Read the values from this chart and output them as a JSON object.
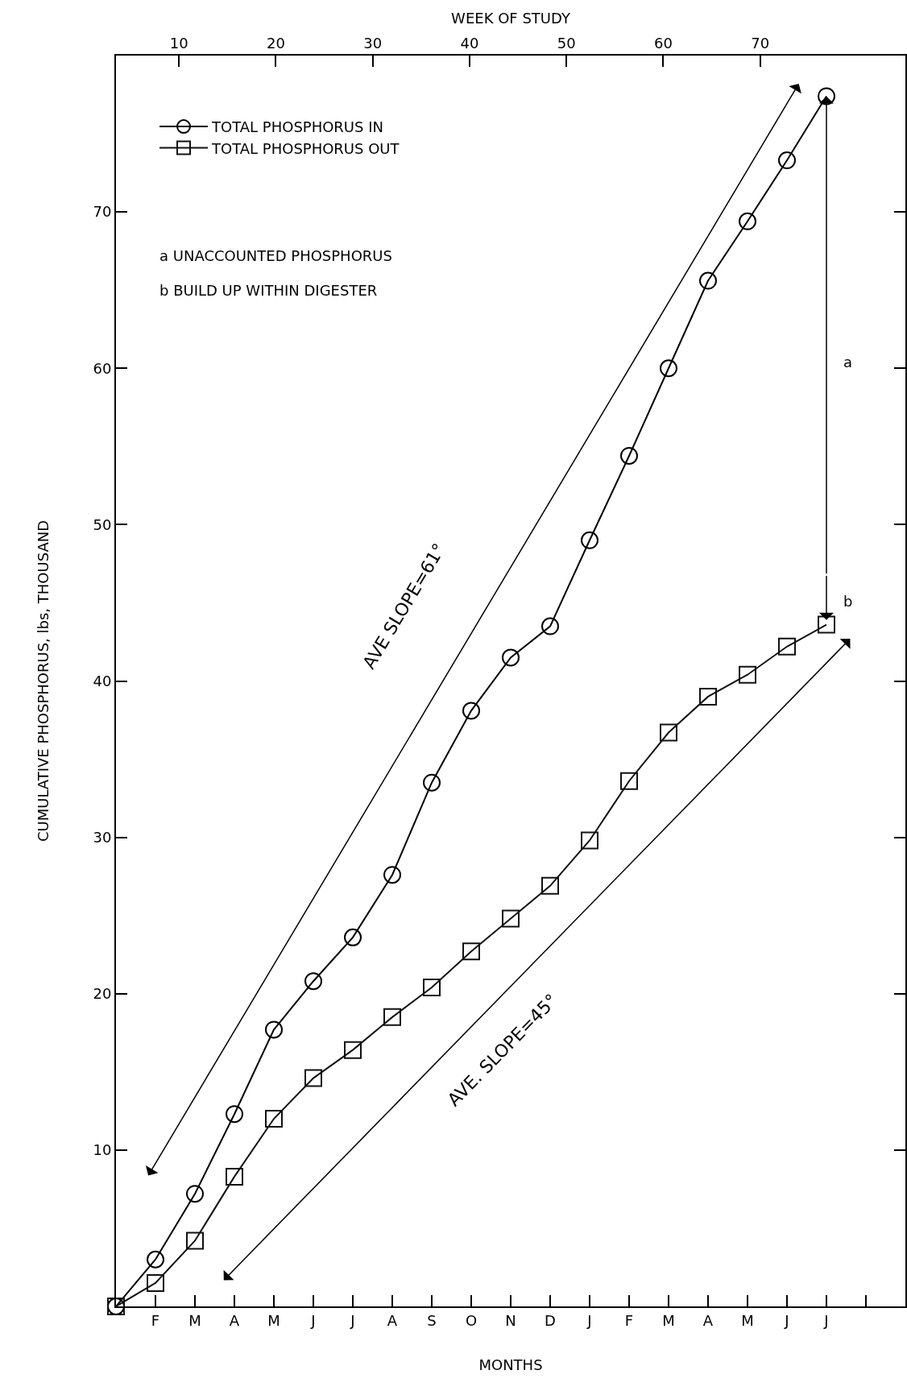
{
  "chart_data": {
    "type": "line",
    "xlabel": "MONTHS",
    "x2label": "WEEK OF STUDY",
    "ylabel": "CUMULATIVE PHOSPHORUS, lbs, THOUSAND",
    "categories": [
      null,
      "F",
      "M",
      "A",
      "M",
      "J",
      "J",
      "A",
      "S",
      "O",
      "N",
      "D",
      "J",
      "F",
      "M",
      "A",
      "M",
      "J",
      "J",
      null
    ],
    "x2lim": [
      3.5,
      85
    ],
    "x2ticks": [
      10,
      20,
      30,
      40,
      50,
      60,
      70
    ],
    "ylim": [
      0,
      80
    ],
    "yticks": [
      10,
      20,
      30,
      40,
      50,
      60,
      70
    ],
    "grid": false,
    "legend": "top left",
    "line_style": "solid",
    "series": [
      {
        "name": "TOTAL PHOSPHORUS IN",
        "color": "#000000",
        "marker": "circle",
        "values": [
          0,
          3.0,
          7.2,
          12.3,
          17.7,
          20.8,
          23.6,
          27.6,
          33.5,
          38.1,
          41.5,
          43.5,
          49.0,
          54.4,
          60.0,
          65.6,
          69.4,
          73.3,
          77.4,
          null
        ]
      },
      {
        "name": "TOTAL PHOSPHORUS OUT",
        "color": "#111111",
        "marker": "square",
        "values": [
          0,
          1.5,
          4.2,
          8.3,
          12.0,
          14.6,
          16.4,
          18.5,
          20.4,
          22.7,
          24.8,
          26.9,
          29.8,
          33.6,
          36.7,
          39.0,
          40.4,
          42.2,
          43.6,
          null
        ]
      }
    ],
    "annotations": [
      "a UNACCOUNTED PHOSPHORUS",
      "b BUILD UP WITHIN DIGESTER",
      "AVE SLOPE=61°",
      "AVE. SLOPE=45°",
      "a",
      "b"
    ]
  }
}
